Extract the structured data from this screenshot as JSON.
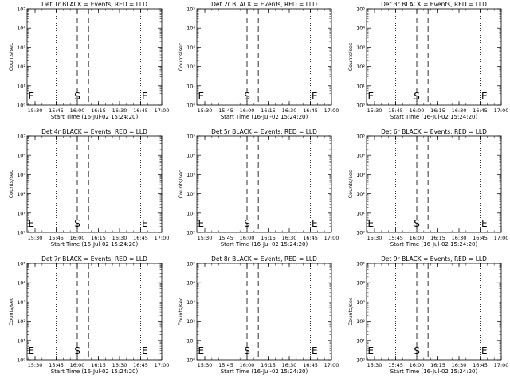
{
  "chart_data": [
    {
      "type": "line",
      "title": "Det 1r BLACK = Events, RED = LLD",
      "xlabel": "Start Time (16-Jul-02 15:24:20)",
      "ylabel": "Counts/sec",
      "xlim": [
        "15:24:20",
        "17:00:00"
      ],
      "y_log": true,
      "ylim": [
        1,
        100000
      ],
      "y_ticks": [
        "10^0",
        "10^1",
        "10^2",
        "10^3",
        "10^4",
        "10^5"
      ],
      "x_ticks": [
        "15:30",
        "15:45",
        "16:00",
        "16:15",
        "16:30",
        "16:45",
        "17:00"
      ],
      "vlines": [
        {
          "time": "15:45",
          "style": "dotted"
        },
        {
          "time": "16:00",
          "style": "dashed"
        },
        {
          "time": "16:08",
          "style": "dashed"
        },
        {
          "time": "16:45",
          "style": "dotted"
        }
      ],
      "markers": [
        {
          "label": "E",
          "time": "15:24:20"
        },
        {
          "label": "S",
          "time": "16:00"
        },
        {
          "label": "E",
          "time": "16:45"
        }
      ],
      "series": []
    },
    {
      "type": "line",
      "title": "Det 2r BLACK = Events, RED = LLD",
      "xlabel": "Start Time (16-Jul-02 15:24:20)",
      "ylabel": "Counts/sec",
      "xlim": [
        "15:24:20",
        "17:00:00"
      ],
      "y_log": true,
      "ylim": [
        1,
        100000
      ],
      "y_ticks": [
        "10^0",
        "10^1",
        "10^2",
        "10^3",
        "10^4",
        "10^5"
      ],
      "x_ticks": [
        "15:30",
        "15:45",
        "16:00",
        "16:15",
        "16:30",
        "16:45",
        "17:00"
      ],
      "vlines": [
        {
          "time": "15:45",
          "style": "dotted"
        },
        {
          "time": "16:00",
          "style": "dashed"
        },
        {
          "time": "16:08",
          "style": "dashed"
        },
        {
          "time": "16:45",
          "style": "dotted"
        }
      ],
      "markers": [
        {
          "label": "E",
          "time": "15:24:20"
        },
        {
          "label": "S",
          "time": "16:00"
        },
        {
          "label": "E",
          "time": "16:45"
        }
      ],
      "series": []
    },
    {
      "type": "line",
      "title": "Det 3r BLACK = Events, RED = LLD",
      "xlabel": "Start Time (16-Jul-02 15:24:20)",
      "ylabel": "Counts/sec",
      "xlim": [
        "15:24:20",
        "17:00:00"
      ],
      "y_log": true,
      "ylim": [
        1,
        100000
      ],
      "y_ticks": [
        "10^0",
        "10^1",
        "10^2",
        "10^3",
        "10^4",
        "10^5"
      ],
      "x_ticks": [
        "15:30",
        "15:45",
        "16:00",
        "16:15",
        "16:30",
        "16:45",
        "17:00"
      ],
      "vlines": [
        {
          "time": "15:45",
          "style": "dotted"
        },
        {
          "time": "16:00",
          "style": "dashed"
        },
        {
          "time": "16:08",
          "style": "dashed"
        },
        {
          "time": "16:45",
          "style": "dotted"
        }
      ],
      "markers": [
        {
          "label": "E",
          "time": "15:24:20"
        },
        {
          "label": "S",
          "time": "16:00"
        },
        {
          "label": "E",
          "time": "16:45"
        }
      ],
      "series": []
    },
    {
      "type": "line",
      "title": "Det 4r BLACK = Events, RED = LLD",
      "xlabel": "Start Time (16-Jul-02 15:24:20)",
      "ylabel": "Counts/sec",
      "xlim": [
        "15:24:20",
        "17:00:00"
      ],
      "y_log": true,
      "ylim": [
        1,
        100000
      ],
      "y_ticks": [
        "10^0",
        "10^1",
        "10^2",
        "10^3",
        "10^4",
        "10^5"
      ],
      "x_ticks": [
        "15:30",
        "15:45",
        "16:00",
        "16:15",
        "16:30",
        "16:45",
        "17:00"
      ],
      "vlines": [
        {
          "time": "15:45",
          "style": "dotted"
        },
        {
          "time": "16:00",
          "style": "dashed"
        },
        {
          "time": "16:08",
          "style": "dashed"
        },
        {
          "time": "16:45",
          "style": "dotted"
        }
      ],
      "markers": [
        {
          "label": "E",
          "time": "15:24:20"
        },
        {
          "label": "S",
          "time": "16:00"
        },
        {
          "label": "E",
          "time": "16:45"
        }
      ],
      "series": []
    },
    {
      "type": "line",
      "title": "Det 5r BLACK = Events, RED = LLD",
      "xlabel": "Start Time (16-Jul-02 15:24:20)",
      "ylabel": "Counts/sec",
      "xlim": [
        "15:24:20",
        "17:00:00"
      ],
      "y_log": true,
      "ylim": [
        1,
        100000
      ],
      "y_ticks": [
        "10^0",
        "10^1",
        "10^2",
        "10^3",
        "10^4",
        "10^5"
      ],
      "x_ticks": [
        "15:30",
        "15:45",
        "16:00",
        "16:15",
        "16:30",
        "16:45",
        "17:00"
      ],
      "vlines": [
        {
          "time": "15:45",
          "style": "dotted"
        },
        {
          "time": "16:00",
          "style": "dashed"
        },
        {
          "time": "16:08",
          "style": "dashed"
        },
        {
          "time": "16:45",
          "style": "dotted"
        }
      ],
      "markers": [
        {
          "label": "E",
          "time": "15:24:20"
        },
        {
          "label": "S",
          "time": "16:00"
        },
        {
          "label": "E",
          "time": "16:45"
        }
      ],
      "series": []
    },
    {
      "type": "line",
      "title": "Det 6r BLACK = Events, RED = LLD",
      "xlabel": "Start Time (16-Jul-02 15:24:20)",
      "ylabel": "Counts/sec",
      "xlim": [
        "15:24:20",
        "17:00:00"
      ],
      "y_log": true,
      "ylim": [
        1,
        100000
      ],
      "y_ticks": [
        "10^0",
        "10^1",
        "10^2",
        "10^3",
        "10^4",
        "10^5"
      ],
      "x_ticks": [
        "15:30",
        "15:45",
        "16:00",
        "16:15",
        "16:30",
        "16:45",
        "17:00"
      ],
      "vlines": [
        {
          "time": "15:45",
          "style": "dotted"
        },
        {
          "time": "16:00",
          "style": "dashed"
        },
        {
          "time": "16:08",
          "style": "dashed"
        },
        {
          "time": "16:45",
          "style": "dotted"
        }
      ],
      "markers": [
        {
          "label": "E",
          "time": "15:24:20"
        },
        {
          "label": "S",
          "time": "16:00"
        },
        {
          "label": "E",
          "time": "16:45"
        }
      ],
      "series": []
    },
    {
      "type": "line",
      "title": "Det 7r BLACK = Events, RED = LLD",
      "xlabel": "Start Time (16-Jul-02 15:24:20)",
      "ylabel": "Counts/sec",
      "xlim": [
        "15:24:20",
        "17:00:00"
      ],
      "y_log": true,
      "ylim": [
        1,
        100000
      ],
      "y_ticks": [
        "10^0",
        "10^1",
        "10^2",
        "10^3",
        "10^4",
        "10^5"
      ],
      "x_ticks": [
        "15:30",
        "15:45",
        "16:00",
        "16:15",
        "16:30",
        "16:45",
        "17:00"
      ],
      "vlines": [
        {
          "time": "15:45",
          "style": "dotted"
        },
        {
          "time": "16:00",
          "style": "dashed"
        },
        {
          "time": "16:08",
          "style": "dashed"
        },
        {
          "time": "16:45",
          "style": "dotted"
        }
      ],
      "markers": [
        {
          "label": "E",
          "time": "15:24:20"
        },
        {
          "label": "S",
          "time": "16:00"
        },
        {
          "label": "E",
          "time": "16:45"
        }
      ],
      "series": []
    },
    {
      "type": "line",
      "title": "Det 8r BLACK = Events, RED = LLD",
      "xlabel": "Start Time (16-Jul-02 15:24:20)",
      "ylabel": "Counts/sec",
      "xlim": [
        "15:24:20",
        "17:00:00"
      ],
      "y_log": true,
      "ylim": [
        1,
        100000
      ],
      "y_ticks": [
        "10^0",
        "10^1",
        "10^2",
        "10^3",
        "10^4",
        "10^5"
      ],
      "x_ticks": [
        "15:30",
        "15:45",
        "16:00",
        "16:15",
        "16:30",
        "16:45",
        "17:00"
      ],
      "vlines": [
        {
          "time": "15:45",
          "style": "dotted"
        },
        {
          "time": "16:00",
          "style": "dashed"
        },
        {
          "time": "16:08",
          "style": "dashed"
        },
        {
          "time": "16:45",
          "style": "dotted"
        }
      ],
      "markers": [
        {
          "label": "E",
          "time": "15:24:20"
        },
        {
          "label": "S",
          "time": "16:00"
        },
        {
          "label": "E",
          "time": "16:45"
        }
      ],
      "series": []
    },
    {
      "type": "line",
      "title": "Det 9r BLACK = Events, RED = LLD",
      "xlabel": "Start Time (16-Jul-02 15:24:20)",
      "ylabel": "Counts/sec",
      "xlim": [
        "15:24:20",
        "17:00:00"
      ],
      "y_log": true,
      "ylim": [
        1,
        100000
      ],
      "y_ticks": [
        "10^0",
        "10^1",
        "10^2",
        "10^3",
        "10^4",
        "10^5"
      ],
      "x_ticks": [
        "15:30",
        "15:45",
        "16:00",
        "16:15",
        "16:30",
        "16:45",
        "17:00"
      ],
      "vlines": [
        {
          "time": "15:45",
          "style": "dotted"
        },
        {
          "time": "16:00",
          "style": "dashed"
        },
        {
          "time": "16:08",
          "style": "dashed"
        },
        {
          "time": "16:45",
          "style": "dotted"
        }
      ],
      "markers": [
        {
          "label": "E",
          "time": "15:24:20"
        },
        {
          "label": "S",
          "time": "16:00"
        },
        {
          "label": "E",
          "time": "16:45"
        }
      ],
      "series": []
    }
  ]
}
